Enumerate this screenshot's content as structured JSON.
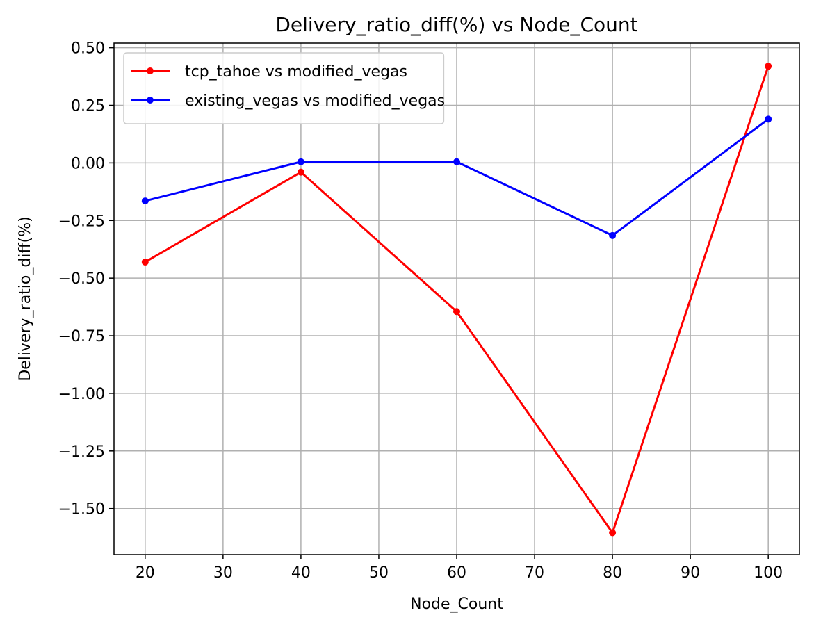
{
  "chart_data": {
    "type": "line",
    "title": "Delivery_ratio_diff(%) vs Node_Count",
    "xlabel": "Node_Count",
    "ylabel": "Delivery_ratio_diff(%)",
    "x": [
      20,
      40,
      60,
      80,
      100
    ],
    "xlim": [
      16,
      104
    ],
    "ylim": [
      -1.7,
      0.52
    ],
    "xticks": [
      20,
      30,
      40,
      50,
      60,
      70,
      80,
      90,
      100
    ],
    "xtick_labels": [
      "20",
      "30",
      "40",
      "50",
      "60",
      "70",
      "80",
      "90",
      "100"
    ],
    "yticks": [
      0.5,
      0.25,
      0.0,
      -0.25,
      -0.5,
      -0.75,
      -1.0,
      -1.25,
      -1.5
    ],
    "ytick_labels": [
      "0.50",
      "0.25",
      "0.00",
      "−0.25",
      "−0.50",
      "−0.75",
      "−1.00",
      "−1.25",
      "−1.50"
    ],
    "grid": true,
    "legend_position": "top-left",
    "series": [
      {
        "name": "tcp_tahoe vs modified_vegas",
        "color": "#ff0000",
        "marker": "circle",
        "values": [
          -0.43,
          -0.04,
          -0.645,
          -1.605,
          0.42
        ]
      },
      {
        "name": "existing_vegas vs modified_vegas",
        "color": "#0000ff",
        "marker": "circle",
        "values": [
          -0.165,
          0.005,
          0.005,
          -0.315,
          0.19
        ]
      }
    ]
  }
}
